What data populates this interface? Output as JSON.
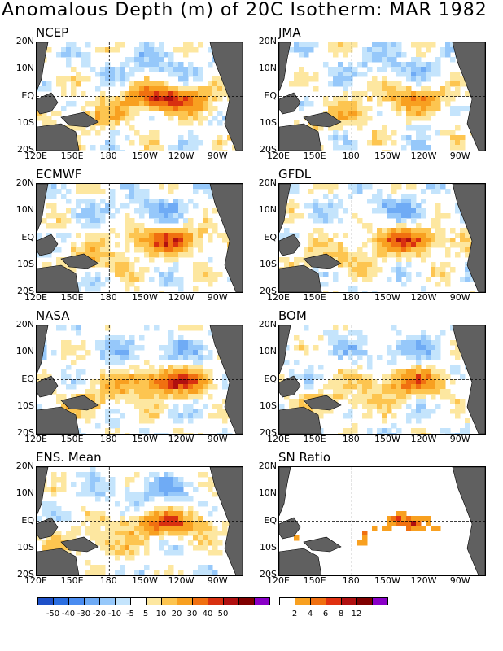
{
  "title": "Anomalous Depth (m) of 20C Isotherm: MAR 1982",
  "lat_labels": [
    "20N",
    "10N",
    "EQ",
    "10S",
    "20S"
  ],
  "lon_labels": [
    "120E",
    "150E",
    "180",
    "150W",
    "120W",
    "90W"
  ],
  "panels": [
    {
      "name": "NCEP",
      "peak": 0.9,
      "seed": 1,
      "palette": "anom"
    },
    {
      "name": "JMA",
      "peak": 0.5,
      "seed": 2,
      "palette": "anom"
    },
    {
      "name": "ECMWF",
      "peak": 0.7,
      "seed": 3,
      "palette": "anom"
    },
    {
      "name": "GFDL",
      "peak": 0.7,
      "seed": 4,
      "palette": "anom"
    },
    {
      "name": "NASA",
      "peak": 0.85,
      "seed": 5,
      "palette": "anom"
    },
    {
      "name": "BOM",
      "peak": 0.6,
      "seed": 6,
      "palette": "anom"
    },
    {
      "name": "ENS. Mean",
      "peak": 0.7,
      "seed": 7,
      "palette": "anom"
    },
    {
      "name": "SN Ratio",
      "peak": 0.6,
      "seed": 8,
      "palette": "snr"
    }
  ],
  "legend_anom": {
    "colors": [
      "#1e50c8",
      "#2b6ee0",
      "#4a8cf0",
      "#6fabf5",
      "#96c8fa",
      "#c4e4fc",
      "#ffffff",
      "#fde7a0",
      "#fdc550",
      "#f8a020",
      "#f07010",
      "#d83010",
      "#b01010",
      "#800000",
      "#8a00c8"
    ],
    "labels": [
      "-50",
      "-40",
      "-30",
      "-20",
      "-10",
      "-5",
      "5",
      "10",
      "20",
      "30",
      "40",
      "50"
    ]
  },
  "legend_snr": {
    "colors": [
      "#ffffff",
      "#f8a020",
      "#f07010",
      "#e03010",
      "#b01010",
      "#800000",
      "#8a00c8"
    ],
    "labels": [
      "2",
      "4",
      "6",
      "8",
      "12"
    ]
  }
}
